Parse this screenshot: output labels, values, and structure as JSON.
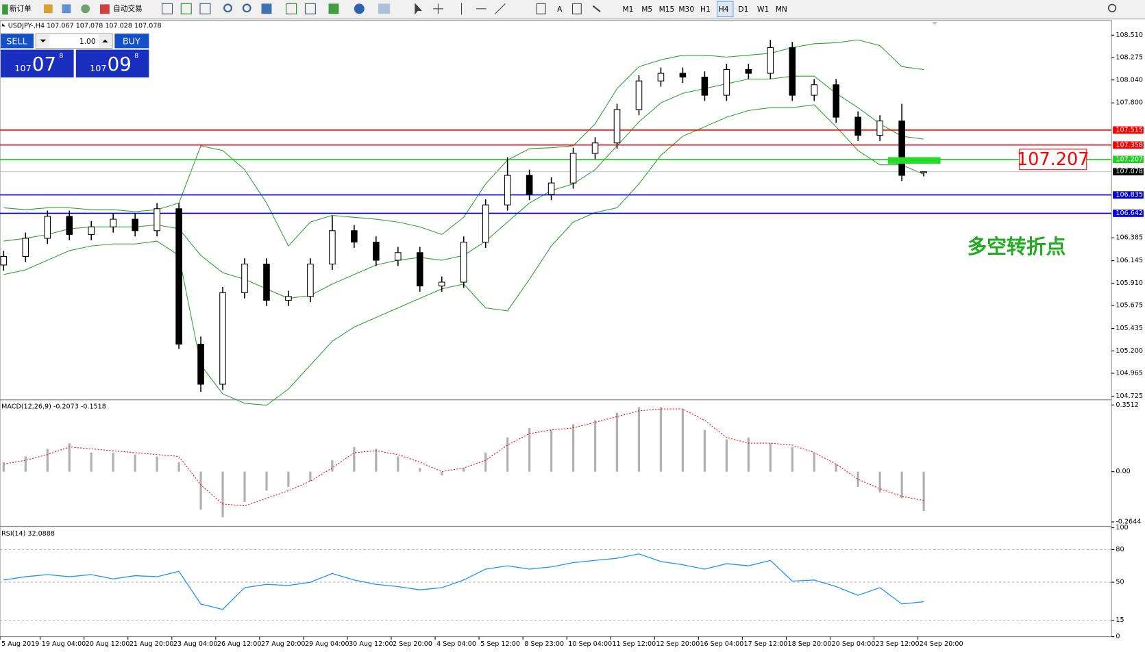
{
  "toolbar": {
    "new_order": "新订单",
    "auto_trade": "自动交易",
    "timeframes": [
      "M1",
      "M5",
      "M15",
      "M30",
      "H1",
      "H4",
      "D1",
      "W1",
      "MN"
    ],
    "active": "H4"
  },
  "trade_panel": {
    "sell": "SELL",
    "buy": "BUY",
    "lot": "1.00",
    "sell_price": {
      "head": "107",
      "big": "07",
      "tail": "8"
    },
    "buy_price": {
      "head": "107",
      "big": "09",
      "tail": "8"
    }
  },
  "chart_data": [
    {
      "type": "candlestick",
      "title": "USDJPY-,H4",
      "x_labels": [
        "5 Aug 2019",
        "19 Aug 04:00",
        "20 Aug 12:00",
        "21 Aug 20:00",
        "23 Aug 04:00",
        "26 Aug 12:00",
        "27 Aug 20:00",
        "29 Aug 04:00",
        "30 Aug 12:00",
        "2 Sep 20:00",
        "4 Sep 04:00",
        "5 Sep 12:00",
        "8 Sep 23:00",
        "10 Sep 04:00",
        "11 Sep 12:00",
        "12 Sep 20:00",
        "16 Sep 04:00",
        "17 Sep 12:00",
        "18 Sep 20:00",
        "20 Sep 04:00",
        "23 Sep 12:00",
        "24 Sep 20:00"
      ],
      "open": [
        106.1,
        106.19,
        106.38,
        106.61,
        106.42,
        106.5,
        106.58,
        106.46,
        106.69,
        105.27,
        104.85,
        105.81,
        106.11,
        105.73,
        105.77,
        106.11,
        106.46,
        106.34,
        106.15,
        106.23,
        105.88,
        105.92,
        106.34,
        106.73,
        107.04,
        106.84,
        106.96,
        107.27,
        107.38,
        107.73,
        108.03,
        108.11,
        108.07,
        107.88,
        108.15,
        108.11,
        108.38,
        107.88,
        107.99,
        107.65,
        107.46,
        107.61,
        107.067
      ],
      "high": [
        106.25,
        106.44,
        106.67,
        106.67,
        106.56,
        106.64,
        106.64,
        106.75,
        106.75,
        105.35,
        105.87,
        106.17,
        106.17,
        105.83,
        106.17,
        106.62,
        106.52,
        106.4,
        106.29,
        106.29,
        105.98,
        106.4,
        106.79,
        107.23,
        107.1,
        107.02,
        107.33,
        107.44,
        107.79,
        108.09,
        108.17,
        108.17,
        108.13,
        108.21,
        108.21,
        108.46,
        108.44,
        108.05,
        108.05,
        107.71,
        107.67,
        107.79,
        107.078
      ],
      "low": [
        106.04,
        106.13,
        106.32,
        106.36,
        106.36,
        106.44,
        106.4,
        106.4,
        105.22,
        104.77,
        104.79,
        105.75,
        105.67,
        105.67,
        105.71,
        106.05,
        106.28,
        106.09,
        106.09,
        105.82,
        105.82,
        105.86,
        106.28,
        106.67,
        106.78,
        106.78,
        106.9,
        107.21,
        107.32,
        107.67,
        107.97,
        108.01,
        107.82,
        107.82,
        108.05,
        108.05,
        107.82,
        107.82,
        107.59,
        107.4,
        107.4,
        106.98,
        107.028
      ],
      "close": [
        106.19,
        106.38,
        106.61,
        106.42,
        106.5,
        106.58,
        106.46,
        106.69,
        105.27,
        104.85,
        105.81,
        106.11,
        105.73,
        105.77,
        106.11,
        106.46,
        106.34,
        106.15,
        106.23,
        105.88,
        105.92,
        106.34,
        106.73,
        107.04,
        106.84,
        106.96,
        107.27,
        107.38,
        107.73,
        108.03,
        108.11,
        108.07,
        107.88,
        108.15,
        108.11,
        108.38,
        107.88,
        107.99,
        107.65,
        107.46,
        107.61,
        107.04,
        107.078
      ],
      "bands": {
        "color": "#2ca02c",
        "upper": [
          106.7,
          106.68,
          106.7,
          106.7,
          106.68,
          106.68,
          106.66,
          106.68,
          106.75,
          107.35,
          107.3,
          107.1,
          106.75,
          106.3,
          106.55,
          106.62,
          106.6,
          106.58,
          106.55,
          106.5,
          106.42,
          106.6,
          106.95,
          107.2,
          107.32,
          107.33,
          107.35,
          107.58,
          107.95,
          108.18,
          108.25,
          108.3,
          108.3,
          108.28,
          108.3,
          108.32,
          108.38,
          108.42,
          108.43,
          108.46,
          108.4,
          108.18,
          108.15
        ],
        "middle": [
          106.35,
          106.38,
          106.42,
          106.48,
          106.5,
          106.5,
          106.5,
          106.52,
          106.48,
          106.2,
          106.02,
          105.95,
          105.85,
          105.75,
          105.78,
          105.9,
          106.0,
          106.1,
          106.15,
          106.18,
          106.15,
          106.2,
          106.35,
          106.55,
          106.75,
          106.88,
          106.95,
          107.1,
          107.35,
          107.6,
          107.8,
          107.9,
          107.95,
          108.0,
          108.05,
          108.05,
          108.08,
          108.08,
          107.9,
          107.75,
          107.58,
          107.45,
          107.42
        ],
        "lower": [
          106.0,
          106.05,
          106.15,
          106.25,
          106.3,
          106.32,
          106.32,
          106.35,
          106.2,
          105.05,
          104.75,
          104.65,
          104.63,
          104.8,
          105.05,
          105.3,
          105.45,
          105.55,
          105.65,
          105.75,
          105.85,
          105.9,
          105.65,
          105.62,
          105.95,
          106.3,
          106.55,
          106.65,
          106.7,
          106.95,
          107.25,
          107.45,
          107.55,
          107.65,
          107.72,
          107.75,
          107.75,
          107.78,
          107.55,
          107.3,
          107.15,
          107.15,
          107.05
        ]
      },
      "levels": [
        {
          "value": 107.515,
          "color": "#ff0000"
        },
        {
          "value": 107.358,
          "color": "#ff0000"
        },
        {
          "value": 107.207,
          "color": "#22cc22"
        },
        {
          "value": 107.078,
          "color": "#000000"
        },
        {
          "value": 106.835,
          "color": "#0000dd"
        },
        {
          "value": 106.642,
          "color": "#0000dd"
        }
      ],
      "annotation": "多空转折点",
      "ylim": [
        104.694,
        108.664
      ],
      "yticks": [
        {
          "value": 108.51,
          "label": "108.510"
        },
        108.275,
        {
          "value": 108.04,
          "label": "108.040"
        },
        {
          "value": 107.8,
          "label": "107.800"
        },
        106.385,
        106.145,
        {
          "value": 105.91,
          "label": "105.910"
        },
        105.675,
        105.435,
        {
          "value": 105.2,
          "label": "105.200"
        },
        104.965,
        104.725
      ]
    },
    {
      "type": "macd",
      "title": "MACD(12,26,9)",
      "histogram": [
        0.05,
        0.08,
        0.12,
        0.15,
        0.1,
        0.1,
        0.09,
        0.08,
        0.05,
        -0.2,
        -0.24,
        -0.16,
        -0.1,
        -0.08,
        -0.05,
        0.06,
        0.13,
        0.12,
        0.08,
        0.02,
        -0.02,
        0.02,
        0.1,
        0.18,
        0.23,
        0.22,
        0.25,
        0.27,
        0.31,
        0.34,
        0.34,
        0.33,
        0.22,
        0.17,
        0.18,
        0.15,
        0.13,
        0.1,
        0.04,
        -0.08,
        -0.11,
        -0.14,
        -0.2073
      ],
      "signal": [
        0.04,
        0.06,
        0.09,
        0.13,
        0.12,
        0.11,
        0.1,
        0.09,
        0.08,
        -0.07,
        -0.17,
        -0.18,
        -0.14,
        -0.1,
        -0.05,
        0.02,
        0.1,
        0.11,
        0.09,
        0.05,
        0.0,
        0.02,
        0.06,
        0.14,
        0.2,
        0.22,
        0.23,
        0.26,
        0.29,
        0.32,
        0.33,
        0.33,
        0.27,
        0.18,
        0.15,
        0.15,
        0.14,
        0.1,
        0.04,
        -0.04,
        -0.09,
        -0.13,
        -0.1518
      ],
      "hist_color": "#b0b0b0",
      "signal_color": "#ff0000",
      "ylim": [
        -0.2837,
        0.3705
      ],
      "yticks": [
        0.3512,
        {
          "value": 0,
          "label": "0.00"
        },
        -0.2644
      ]
    },
    {
      "type": "rsi",
      "title": "RSI(14)",
      "values": [
        52,
        55,
        57,
        55,
        57,
        53,
        56,
        55,
        60,
        30,
        25,
        45,
        48,
        47,
        50,
        58,
        52,
        48,
        46,
        43,
        45,
        52,
        62,
        65,
        62,
        64,
        68,
        70,
        72,
        76,
        69,
        66,
        62,
        67,
        65,
        70,
        51,
        52,
        46,
        38,
        45,
        30,
        32.0888
      ],
      "color": "#1e90ff",
      "ylim": [
        0,
        100
      ],
      "yticks": [
        100,
        80,
        50,
        15,
        0
      ]
    }
  ]
}
